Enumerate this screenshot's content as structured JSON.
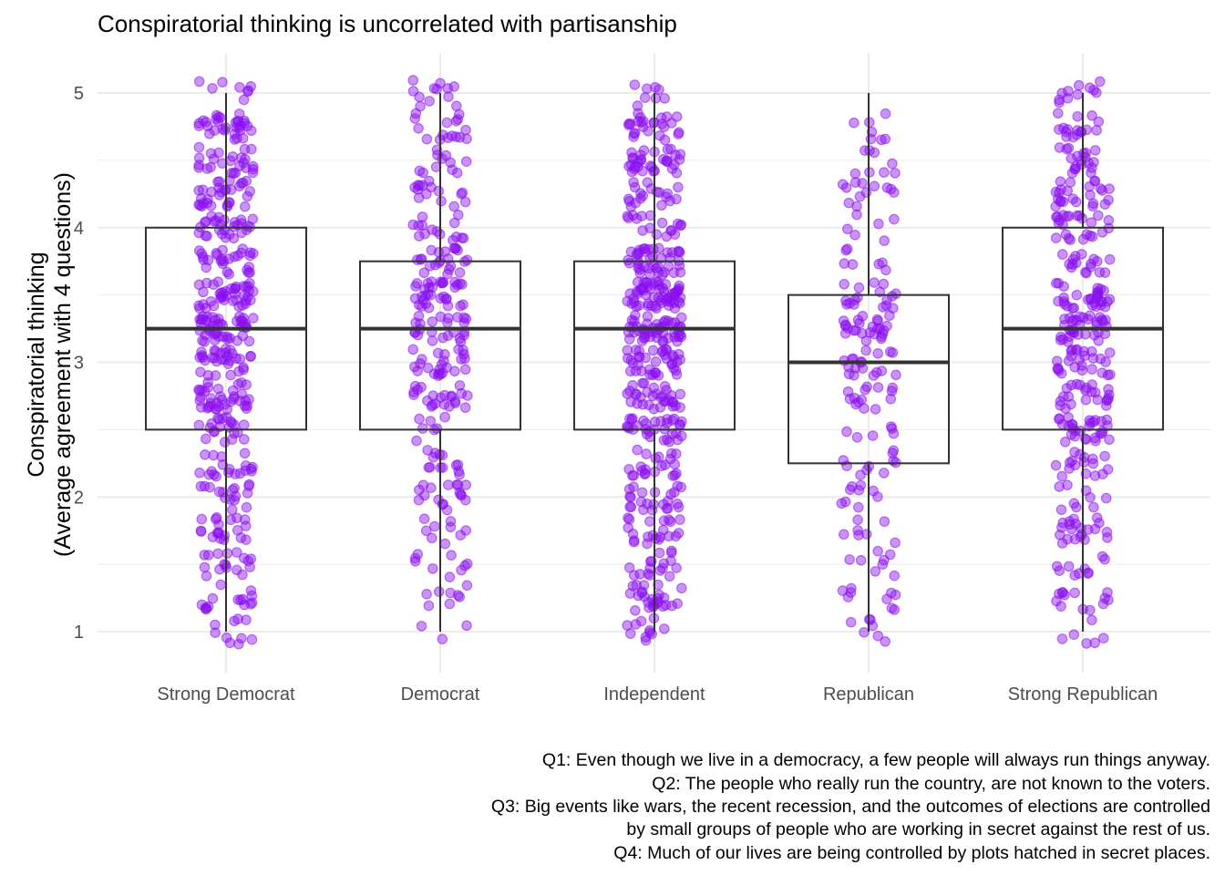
{
  "chart_data": {
    "type": "boxplot",
    "title": "Conspiratorial thinking is uncorrelated with partisanship",
    "ylabel_lines": [
      "Conspiratorial thinking",
      "(Average agreement with 4 questions)"
    ],
    "xlabel": "",
    "categories": [
      "Strong Democrat",
      "Democrat",
      "Independent",
      "Republican",
      "Strong Republican"
    ],
    "ylim": [
      0.72,
      5.28
    ],
    "y_ticks": [
      1,
      2,
      3,
      4,
      5
    ],
    "y_tick_labels": [
      "1",
      "2",
      "3",
      "4",
      "5"
    ],
    "grid": true,
    "legend": "none",
    "point_color": "#8a0ff0",
    "boxes": [
      {
        "category": "Strong Democrat",
        "min": 1,
        "q1": 2.5,
        "median": 3.25,
        "q3": 4.0,
        "max": 5,
        "n_points": 420
      },
      {
        "category": "Democrat",
        "min": 1,
        "q1": 2.5,
        "median": 3.25,
        "q3": 3.75,
        "max": 5,
        "n_points": 260
      },
      {
        "category": "Independent",
        "min": 1,
        "q1": 2.5,
        "median": 3.25,
        "q3": 3.75,
        "max": 5,
        "n_points": 470
      },
      {
        "category": "Republican",
        "min": 1,
        "q1": 2.25,
        "median": 3.0,
        "q3": 3.5,
        "max": 5,
        "n_points": 170
      },
      {
        "category": "Strong Republican",
        "min": 1,
        "q1": 2.5,
        "median": 3.25,
        "q3": 4.0,
        "max": 5,
        "n_points": 330
      }
    ],
    "caption_lines": [
      "Q1: Even though we live in a democracy, a few people will always run things anyway.",
      "Q2: The people who really run the country, are not known to the voters.",
      "Q3: Big events like wars, the recent recession, and the outcomes of elections are controlled",
      "by small groups of people who are working in secret against the rest of us.",
      "Q4: Much of our lives are being controlled by plots hatched in secret places."
    ]
  }
}
